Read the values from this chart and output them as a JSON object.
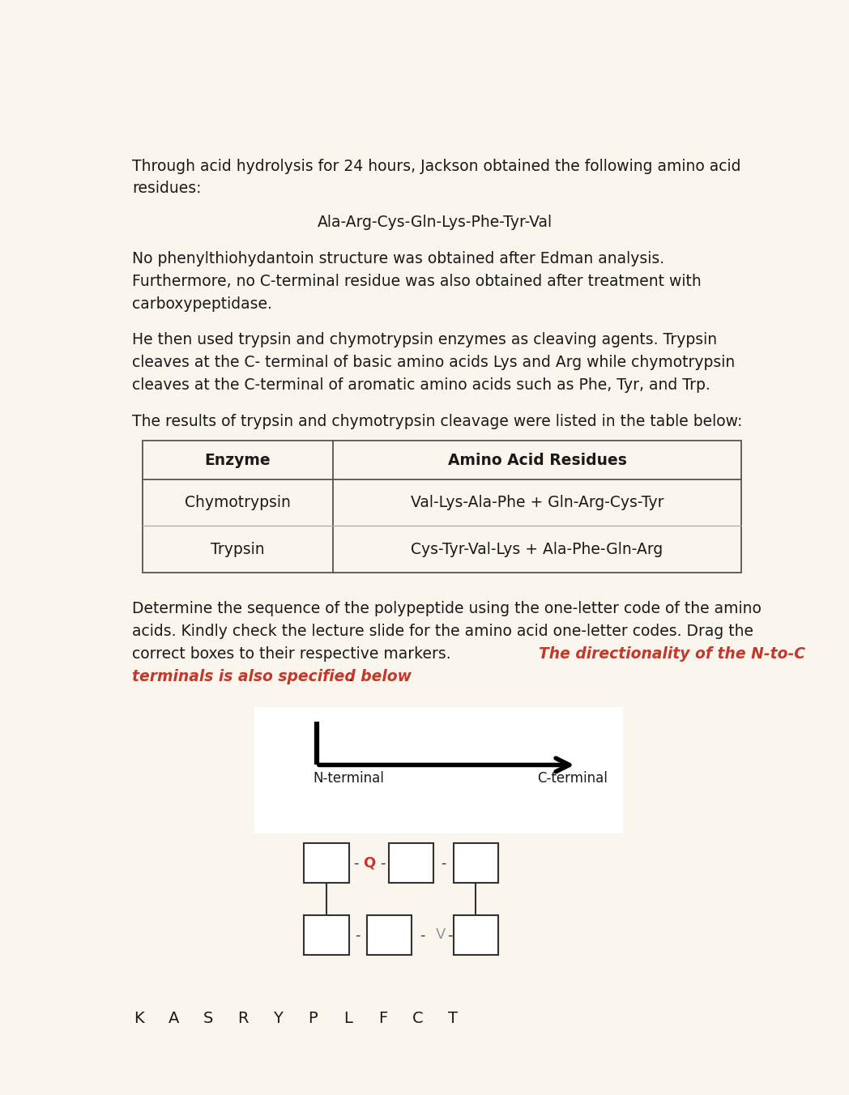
{
  "background_color": "#faf6ee",
  "text_color": "#1a1a1a",
  "page_width": 10.48,
  "page_height": 13.52,
  "para1_line1": "Through acid hydrolysis for 24 hours, Jackson obtained the following amino acid",
  "para1_line2": "residues:",
  "amino_acids_line": "Ala-Arg-Cys-Gln-Lys-Phe-Tyr-Val",
  "para2_line1": "No phenylthiohydantoin structure was obtained after Edman analysis.",
  "para2_line2": "Furthermore, no C-terminal residue was also obtained after treatment with",
  "para2_line3": "carboxypeptidase.",
  "para3_line1": "He then used trypsin and chymotrypsin enzymes as cleaving agents. Trypsin",
  "para3_line2": "cleaves at the C- terminal of basic amino acids Lys and Arg while chymotrypsin",
  "para3_line3": "cleaves at the C-terminal of aromatic amino acids such as Phe, Tyr, and Trp.",
  "para4": "The results of trypsin and chymotrypsin cleavage were listed in the table below:",
  "table_col1_header": "Enzyme",
  "table_col2_header": "Amino Acid Residues",
  "table_row1_col1": "Chymotrypsin",
  "table_row1_col2": "Val-Lys-Ala-Phe + Gln-Arg-Cys-Tyr",
  "table_row2_col1": "Trypsin",
  "table_row2_col2": "Cys-Tyr-Val-Lys + Ala-Phe-Gln-Arg",
  "para5_line1": "Determine the sequence of the polypeptide using the one-letter code of the amino",
  "para5_line2": "acids. Kindly check the lecture slide for the amino acid one-letter codes. Drag the",
  "para5_line3_normal": "correct boxes to their respective markers. ",
  "para5_line3_red": "The directionality of the N-to-C",
  "para5_line4_red": "terminals is also specified below",
  "para5_line4_end": ".",
  "n_terminal_label": "N-terminal",
  "c_terminal_label": "C-terminal",
  "q_letter": "Q",
  "q_color": "#c0392b",
  "v_letter": "V",
  "v_color": "#8899aa",
  "bottom_letters": [
    "K",
    "A",
    "S",
    "R",
    "Y",
    "P",
    "L",
    "F",
    "C",
    "T"
  ]
}
